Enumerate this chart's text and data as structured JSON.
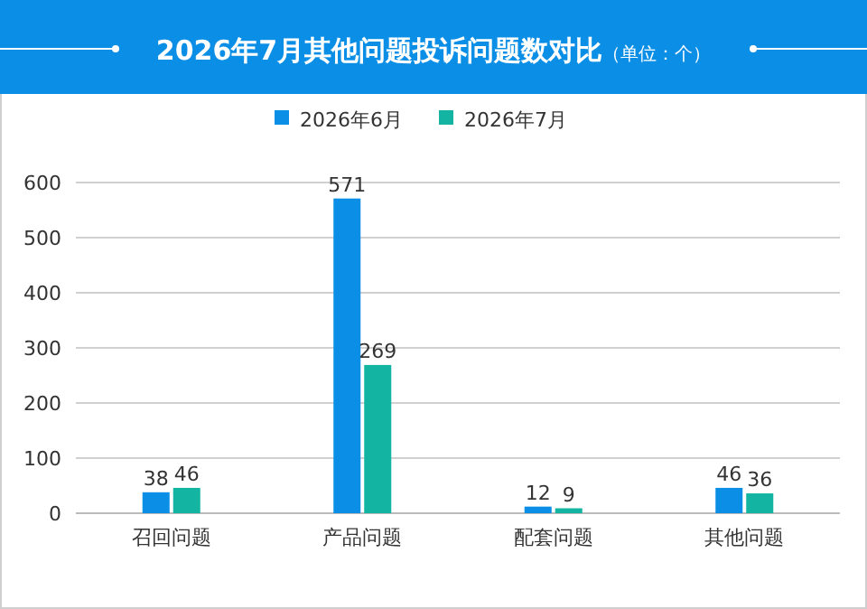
{
  "chart_data": {
    "type": "bar",
    "title": "2026年7月其他问题投诉问题数对比",
    "subtitle": "（单位：个）",
    "categories": [
      "召回问题",
      "产品问题",
      "配套问题",
      "其他问题"
    ],
    "series": [
      {
        "name": "2026年6月",
        "color": "#0a8ee6",
        "values": [
          38,
          571,
          12,
          46
        ]
      },
      {
        "name": "2026年7月",
        "color": "#13b5a2",
        "values": [
          46,
          269,
          9,
          36
        ]
      }
    ],
    "ylim": [
      0,
      600
    ],
    "yticks": [
      0,
      100,
      200,
      300,
      400,
      500,
      600
    ],
    "grid": "y",
    "legend": "top",
    "data_labels": true
  }
}
